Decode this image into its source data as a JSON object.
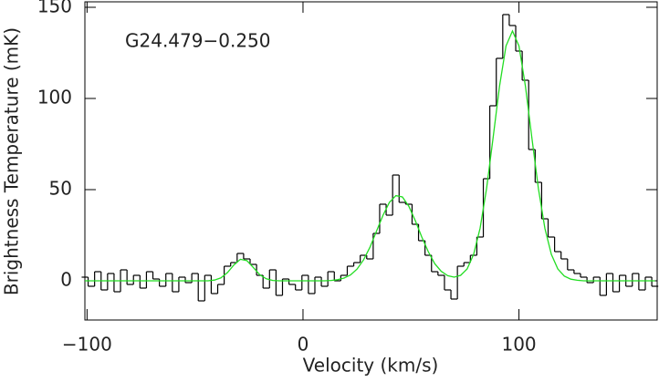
{
  "chart_data": {
    "type": "line",
    "annotation": "G24.479−0.250",
    "xlabel": "Velocity (km/s)",
    "ylabel": "Brightness Temperature (mK)",
    "xlim": [
      -101,
      164
    ],
    "ylim": [
      -21.5,
      153
    ],
    "xticks": [
      {
        "value": -100,
        "label": "−100"
      },
      0,
      100
    ],
    "yticks": [
      0,
      50,
      100,
      150
    ],
    "x": [
      -101,
      -98,
      -95,
      -92,
      -89,
      -86,
      -83,
      -80,
      -77,
      -74,
      -71,
      -68,
      -65,
      -62,
      -59,
      -56,
      -53,
      -50,
      -47,
      -44,
      -41,
      -38,
      -35,
      -32,
      -29,
      -26,
      -23,
      -20,
      -17,
      -14,
      -11,
      -8,
      -5,
      -2,
      1,
      4,
      7,
      10,
      13,
      16,
      19,
      22,
      25,
      28,
      31,
      34,
      37,
      40,
      43,
      46,
      49,
      52,
      55,
      58,
      61,
      64,
      67,
      70,
      73,
      76,
      79,
      82,
      85,
      88,
      91,
      94,
      97,
      100,
      103,
      106,
      109,
      112,
      115,
      118,
      121,
      124,
      127,
      130,
      133,
      136,
      139,
      142,
      145,
      148,
      151,
      154,
      157,
      160,
      163
    ],
    "series": [
      {
        "style": "steps",
        "color": "#000000",
        "values": [
          2,
          -3,
          5,
          -5,
          4,
          -6,
          6,
          -2,
          3,
          -4,
          5,
          1,
          -3,
          4,
          -6,
          2,
          -1,
          4,
          -11,
          3,
          -7,
          -2,
          8,
          10,
          15,
          12,
          9,
          3,
          -4,
          6,
          -8,
          1,
          -2,
          -5,
          3,
          -7,
          2,
          -3,
          5,
          0,
          3,
          8,
          10,
          14,
          12,
          26,
          42,
          36,
          58,
          43,
          42,
          31,
          22,
          14,
          5,
          3,
          -5,
          -10,
          8,
          10,
          14,
          24,
          56,
          96,
          122,
          146,
          140,
          126,
          110,
          72,
          54,
          34,
          24,
          16,
          12,
          6,
          4,
          2,
          -1,
          2,
          -8,
          4,
          -6,
          3,
          -3,
          4,
          -5,
          2,
          -3
        ]
      },
      {
        "style": "line",
        "color": "#22dd22",
        "values": [
          0,
          0,
          0,
          0,
          0,
          0,
          0,
          0,
          0,
          0,
          0,
          0,
          0,
          0,
          0,
          0,
          0,
          0,
          0,
          0,
          0.4,
          1.6,
          4.5,
          8.7,
          11.8,
          11.1,
          7.3,
          3.3,
          1.1,
          0.2,
          0,
          0,
          0,
          0,
          0,
          0,
          0,
          0,
          0.2,
          0.6,
          1.5,
          3.2,
          6.4,
          11.4,
          18.4,
          27.1,
          35.8,
          43,
          46.7,
          46,
          40.9,
          33,
          24,
          16,
          9.4,
          5.2,
          2.8,
          2,
          3,
          6.5,
          14.5,
          28.8,
          50.6,
          78.2,
          106.7,
          128.8,
          137,
          128.8,
          106.7,
          78.2,
          50.6,
          28.8,
          14.5,
          6.5,
          2.6,
          0.9,
          0.3,
          0,
          0,
          0,
          0,
          0,
          0,
          0,
          0,
          0,
          0,
          0,
          0
        ]
      }
    ]
  }
}
